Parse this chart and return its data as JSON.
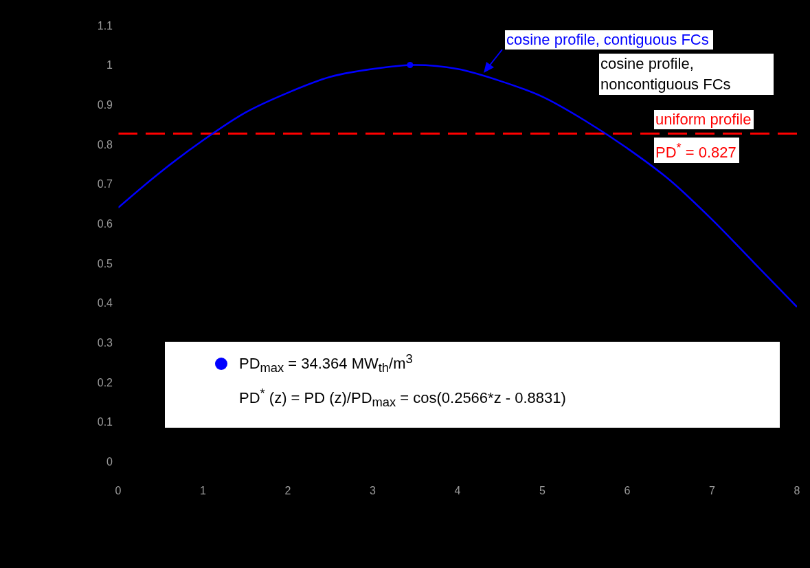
{
  "chart_data": {
    "type": "line",
    "x": [
      0,
      0.5,
      1,
      1.5,
      2,
      2.5,
      3,
      3.5,
      4,
      4.5,
      5,
      5.5,
      6,
      6.5,
      7,
      7.5,
      8
    ],
    "series": [
      {
        "name": "cosine profile, contiguous FCs",
        "color": "#0000ff",
        "marker": "none",
        "values": [
          0.64,
          0.73,
          0.81,
          0.88,
          0.93,
          0.97,
          0.99,
          1.0,
          0.99,
          0.96,
          0.92,
          0.86,
          0.79,
          0.71,
          0.61,
          0.5,
          0.39
        ]
      },
      {
        "type": "scatter",
        "marker": "circle",
        "name": "PD$_{max}$ = 34.364 MW$_{th}$/m$^{3}$",
        "color": "#0000ff",
        "x": [
          3.44
        ],
        "values": [
          1.0
        ]
      }
    ],
    "xlim": [
      0,
      8
    ],
    "xticks": [
      0,
      1,
      2,
      3,
      4,
      5,
      6,
      7,
      8
    ],
    "ylim": [
      -0.05,
      1.15
    ],
    "yticks": [
      0,
      0.1,
      0.2,
      0.3,
      0.4,
      0.5,
      0.6,
      0.7,
      0.8,
      0.9,
      1,
      1.1
    ],
    "ref_lines": [
      {
        "axis": "y",
        "value": 0.827,
        "label": "uniform profile",
        "color": "#ff0000",
        "line_style": "dashed"
      }
    ],
    "annotations": [
      "cosine profile, noncontiguous FCs",
      "PD$^{*}$ = 0.827",
      "PD$^{*}$ (z) = PD (z)/PD$_{max}$ = cos(0.2566*z - 0.8831)"
    ],
    "legend": "bottom",
    "grid": false,
    "line_style": "solid"
  }
}
